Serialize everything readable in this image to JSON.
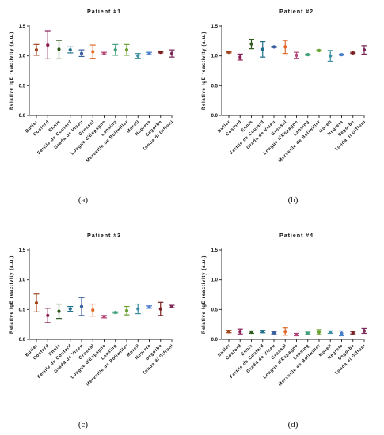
{
  "colors": [
    "#a0441e",
    "#8a1e55",
    "#2e5a1e",
    "#1f6f8b",
    "#3a5fa0",
    "#e06a2a",
    "#b5487a",
    "#3fa07a",
    "#6aa12f",
    "#3d8fa0",
    "#4a7ec8",
    "#7a2020",
    "#7a2858",
    "#5a1e50",
    "#556b1e"
  ],
  "chart_data": [
    {
      "type": "scatter",
      "title": "Patient #1",
      "caption": "(a)",
      "ylabel": "Relative IgE reactivity (a.u.)",
      "ylim": [
        0,
        1.5
      ],
      "yticks": [
        "0.0",
        "0.5",
        "1.0",
        "1.5"
      ],
      "categories": [
        "Butler",
        "Cosford",
        "Ennis",
        "Fertile de Coutard",
        "Grada de Viseu",
        "Grossal",
        "Longue d'Espagne",
        "Lansing",
        "Merveille de Bollwiller",
        "Morell",
        "Negreta",
        "Segorbe",
        "Tonda di Giffoni"
      ],
      "mean": [
        1.1,
        1.18,
        1.11,
        1.1,
        1.04,
        1.07,
        1.04,
        1.1,
        1.1,
        1.0,
        1.04,
        1.06,
        1.04
      ],
      "upper": [
        1.19,
        1.42,
        1.26,
        1.15,
        1.1,
        1.18,
        1.06,
        1.19,
        1.19,
        1.04,
        1.06,
        1.07,
        1.1
      ],
      "lower": [
        1.01,
        0.95,
        0.95,
        1.05,
        0.99,
        0.96,
        1.02,
        1.01,
        1.01,
        0.96,
        1.02,
        1.05,
        0.98
      ]
    },
    {
      "type": "scatter",
      "title": "Patient #2",
      "caption": "(b)",
      "ylabel": "Relative IgE reactivity (a.u.)",
      "ylim": [
        0,
        1.5
      ],
      "yticks": [
        "0.0",
        "0.5",
        "1.0",
        "1.5"
      ],
      "categories": [
        "Butler",
        "Cosford",
        "Ennis",
        "Fertile de Coutard",
        "Grada de Viseu",
        "Grossal",
        "Longue d'Espagne",
        "Lansing",
        "Merveille de Bollwiller",
        "Morell",
        "Negreta",
        "Segorbe",
        "Tonda di Giffoni"
      ],
      "mean": [
        1.06,
        0.98,
        1.2,
        1.11,
        1.15,
        1.15,
        1.01,
        1.02,
        1.09,
        1.0,
        1.02,
        1.05,
        1.1
      ],
      "upper": [
        1.07,
        1.03,
        1.28,
        1.24,
        1.16,
        1.26,
        1.06,
        1.03,
        1.1,
        1.09,
        1.03,
        1.06,
        1.17
      ],
      "lower": [
        1.05,
        0.93,
        1.12,
        0.98,
        1.14,
        1.04,
        0.96,
        1.01,
        1.08,
        0.91,
        1.01,
        1.04,
        1.03
      ]
    },
    {
      "type": "scatter",
      "title": "Patient #3",
      "caption": "(c)",
      "ylabel": "Relative IgE reactivity (a.u.)",
      "ylim": [
        0,
        1.5
      ],
      "yticks": [
        "0.0",
        "0.5",
        "1.0",
        "1.5"
      ],
      "categories": [
        "Butler",
        "Cosford",
        "Ennis",
        "Fertile de Coutard",
        "Grada de Viseu",
        "Grossal",
        "Longue d'Espagne",
        "Lansing",
        "Merveille de Bollwiller",
        "Morell",
        "Negreta",
        "Segorbe",
        "Tonda di Giffoni"
      ],
      "mean": [
        0.61,
        0.4,
        0.47,
        0.51,
        0.55,
        0.49,
        0.38,
        0.45,
        0.48,
        0.51,
        0.54,
        0.51,
        0.55
      ],
      "upper": [
        0.76,
        0.52,
        0.59,
        0.55,
        0.7,
        0.59,
        0.4,
        0.46,
        0.55,
        0.59,
        0.56,
        0.62,
        0.57
      ],
      "lower": [
        0.46,
        0.28,
        0.35,
        0.47,
        0.4,
        0.39,
        0.36,
        0.44,
        0.41,
        0.43,
        0.52,
        0.4,
        0.53
      ]
    },
    {
      "type": "scatter",
      "title": "Patient #4",
      "caption": "(d)",
      "ylabel": "Relative IgE reactivity (a.u.)",
      "ylim": [
        0,
        1.5
      ],
      "yticks": [
        "0.0",
        "0.5",
        "1.0",
        "1.5"
      ],
      "categories": [
        "Butler",
        "Cosford",
        "Ennis",
        "Fertile de Coutard",
        "Grada de Viseu",
        "Grossal",
        "Longue d'Espagne",
        "Lansing",
        "Merveille de Bollwiller",
        "Morell",
        "Negreta",
        "Segorbe",
        "Tonda di Giffoni"
      ],
      "mean": [
        0.13,
        0.13,
        0.12,
        0.13,
        0.11,
        0.13,
        0.08,
        0.1,
        0.12,
        0.12,
        0.1,
        0.11,
        0.14
      ],
      "upper": [
        0.15,
        0.17,
        0.14,
        0.15,
        0.13,
        0.19,
        0.1,
        0.12,
        0.16,
        0.14,
        0.14,
        0.13,
        0.18
      ],
      "lower": [
        0.11,
        0.09,
        0.1,
        0.11,
        0.09,
        0.07,
        0.06,
        0.08,
        0.08,
        0.1,
        0.06,
        0.09,
        0.1
      ]
    }
  ]
}
